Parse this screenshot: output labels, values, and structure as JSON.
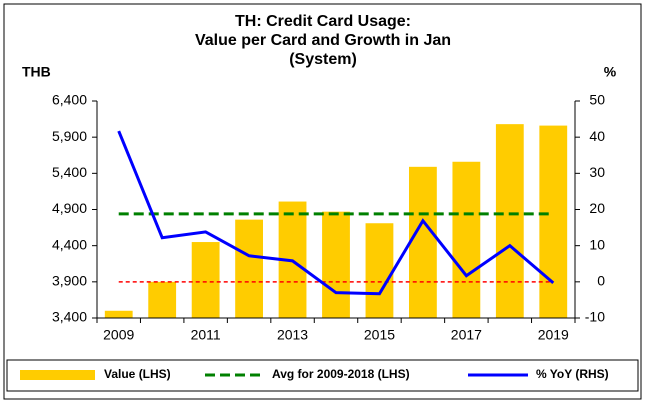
{
  "chart_data": {
    "type": "bar",
    "title": [
      "TH: Credit Card Usage:",
      "Value per Card and Growth in Jan",
      "(System)"
    ],
    "y_label": "THB",
    "y2_label": "%",
    "categories": [
      "2009",
      null,
      "2011",
      null,
      "2013",
      null,
      "2015",
      null,
      "2017",
      null,
      "2019"
    ],
    "series": [
      {
        "name": "Value (LHS)",
        "type": "bar",
        "color": "#FFCC00",
        "values": [
          3500,
          3900,
          4450,
          4760,
          5010,
          4870,
          4710,
          5490,
          5560,
          6080,
          6060
        ]
      },
      {
        "name": "% YoY (RHS)",
        "type": "line",
        "axis": "y2",
        "color": "#0000FF",
        "values": [
          41.7,
          12.2,
          13.8,
          7.2,
          5.8,
          -3.0,
          -3.3,
          16.9,
          1.7,
          10.0,
          -0.3
        ]
      }
    ],
    "avg_line": {
      "name": "Avg for 2009-2018 (LHS)",
      "value": 4840,
      "color": "#008000"
    },
    "y2_ref_line": {
      "value": 0,
      "color": "#FF0000"
    },
    "ylim": [
      3400,
      6400
    ],
    "yticks": [
      {
        "value": 3400,
        "label": "3,400"
      },
      {
        "value": 3900,
        "label": "3,900"
      },
      {
        "value": 4400,
        "label": "4,400"
      },
      {
        "value": 4900,
        "label": "4,900"
      },
      {
        "value": 5400,
        "label": "5,400"
      },
      {
        "value": 5900,
        "label": "5,900"
      },
      {
        "value": 6400,
        "label": "6,400"
      }
    ],
    "y2lim": [
      -10,
      50
    ],
    "y2ticks": [
      -10,
      0,
      10,
      20,
      30,
      40,
      50
    ],
    "legend": "bottom"
  }
}
